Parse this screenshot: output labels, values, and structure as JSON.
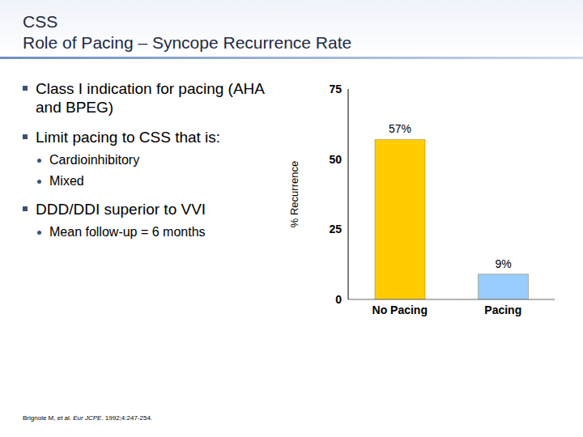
{
  "slide": {
    "title": [
      "CSS",
      "Role of Pacing – Syncope Recurrence Rate"
    ],
    "bullets": [
      {
        "text": "Class I indication for pacing (AHA and BPEG)",
        "sub": []
      },
      {
        "text": "Limit pacing to CSS that is:",
        "sub": [
          "Cardioinhibitory",
          "Mixed"
        ]
      },
      {
        "text": "DDD/DDI superior to VVI",
        "sub": [
          "Mean follow-up = 6 months"
        ]
      }
    ],
    "citation": {
      "authors": "Brignole M, et al. ",
      "journal": "Eur JCPE",
      "rest": ". 1992;4:247-254."
    }
  },
  "chart_data": {
    "type": "bar",
    "y_label": "% Recurrence",
    "categories": [
      "No Pacing",
      "Pacing"
    ],
    "values": [
      57,
      9
    ],
    "value_labels": [
      "57%",
      "9%"
    ],
    "data_labels": true,
    "colors": [
      "#ffcc00",
      "#99ccff"
    ],
    "ylim": [
      0,
      75
    ],
    "yticks": [
      0,
      25,
      50,
      75
    ],
    "grid": false
  }
}
